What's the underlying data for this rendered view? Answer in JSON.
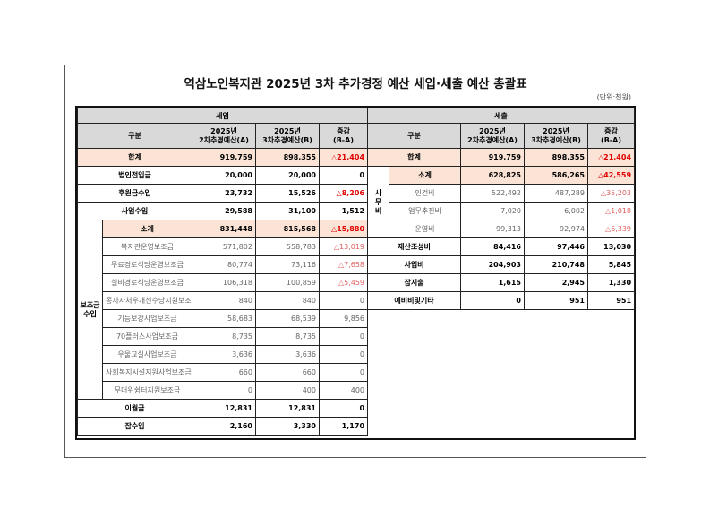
{
  "title": "역삼노인복지관 2025년 3차 추가경정 예산 세입·세출 예산 총괄표",
  "unit": "(단위:천원)",
  "colors": {
    "header_bg": "#d9d9d9",
    "total_bg": "#fbe4d6",
    "negative": "#e00000"
  },
  "revenue": {
    "section": "세입",
    "headers": {
      "category": "구분",
      "a_line1": "2025년",
      "a_line2": "2차추경예산(A)",
      "b_line1": "2025년",
      "b_line2": "3차추경예산(B)",
      "d_line1": "증감",
      "d_line2": "(B-A)"
    },
    "total": {
      "label": "합계",
      "a": "919,759",
      "b": "898,355",
      "d": "△21,404"
    },
    "rows_top": [
      {
        "label": "법인전입금",
        "a": "20,000",
        "b": "20,000",
        "d": "0"
      },
      {
        "label": "후원금수입",
        "a": "23,732",
        "b": "15,526",
        "d": "△8,206"
      },
      {
        "label": "사업수입",
        "a": "29,588",
        "b": "31,100",
        "d": "1,512"
      }
    ],
    "subsidy": {
      "group_label_1": "보조금",
      "group_label_2": "수입",
      "subtotal": {
        "label": "소계",
        "a": "831,448",
        "b": "815,568",
        "d": "△15,880"
      },
      "items": [
        {
          "label": "복지관운영보조금",
          "a": "571,802",
          "b": "558,783",
          "d": "△13,019"
        },
        {
          "label": "무료경로식당운영보조금",
          "a": "80,774",
          "b": "73,116",
          "d": "△7,658"
        },
        {
          "label": "실비경로식당운영보조금",
          "a": "106,318",
          "b": "100,859",
          "d": "△5,459"
        },
        {
          "label": "종사자처우개선수당지원보조금",
          "a": "840",
          "b": "840",
          "d": "0"
        },
        {
          "label": "기능보강사업보조금",
          "a": "58,683",
          "b": "68,539",
          "d": "9,856"
        },
        {
          "label": "70플러스사업보조금",
          "a": "8,735",
          "b": "8,735",
          "d": "0"
        },
        {
          "label": "우울교실사업보조금",
          "a": "3,636",
          "b": "3,636",
          "d": "0"
        },
        {
          "label": "사회복지시설지원사업보조금",
          "a": "660",
          "b": "660",
          "d": "0"
        },
        {
          "label": "무더위쉼터지원보조금",
          "a": "0",
          "b": "400",
          "d": "400"
        }
      ]
    },
    "rows_bottom": [
      {
        "label": "이월금",
        "a": "12,831",
        "b": "12,831",
        "d": "0"
      },
      {
        "label": "잡수입",
        "a": "2,160",
        "b": "3,330",
        "d": "1,170"
      }
    ]
  },
  "expense": {
    "section": "세출",
    "headers": {
      "category": "구분",
      "a_line1": "2025년",
      "a_line2": "2차추경예산(A)",
      "b_line1": "2025년",
      "b_line2": "3차추경예산(B)",
      "d_line1": "증감",
      "d_line2": "(B-A)"
    },
    "total": {
      "label": "합계",
      "a": "919,759",
      "b": "898,355",
      "d": "△21,404"
    },
    "office": {
      "group_label_1": "사",
      "group_label_2": "무",
      "group_label_3": "비",
      "subtotal": {
        "label": "소계",
        "a": "628,825",
        "b": "586,265",
        "d": "△42,559"
      },
      "items": [
        {
          "label": "인건비",
          "a": "522,492",
          "b": "487,289",
          "d": "△35,203"
        },
        {
          "label": "업무추진비",
          "a": "7,020",
          "b": "6,002",
          "d": "△1,018"
        },
        {
          "label": "운영비",
          "a": "99,313",
          "b": "92,974",
          "d": "△6,339"
        }
      ]
    },
    "rows_bottom": [
      {
        "label": "재산조성비",
        "a": "84,416",
        "b": "97,446",
        "d": "13,030"
      },
      {
        "label": "사업비",
        "a": "204,903",
        "b": "210,748",
        "d": "5,845"
      },
      {
        "label": "잡지출",
        "a": "1,615",
        "b": "2,945",
        "d": "1,330"
      },
      {
        "label": "예비비및기타",
        "a": "0",
        "b": "951",
        "d": "951"
      }
    ]
  }
}
